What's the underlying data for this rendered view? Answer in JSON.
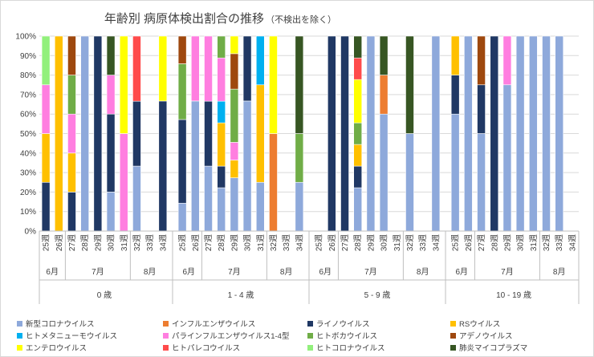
{
  "chart_data": {
    "type": "bar",
    "stacked": "percent",
    "title": "年齢別 病原体検出割合の推移",
    "subtitle": "（不検出を除く）",
    "ylim": [
      0,
      100
    ],
    "yticks": [
      "0%",
      "10%",
      "20%",
      "30%",
      "40%",
      "50%",
      "60%",
      "70%",
      "80%",
      "90%",
      "100%"
    ],
    "week_suffix": "週",
    "series": [
      {
        "name": "新型コロナウイルス",
        "color": "#8ea9db"
      },
      {
        "name": "インフルエンザウイルス",
        "color": "#ed7d31"
      },
      {
        "name": "ライノウイルス",
        "color": "#203864"
      },
      {
        "name": "RSウイルス",
        "color": "#ffc000"
      },
      {
        "name": "ヒトメタニューモウイルス",
        "color": "#00b0f0"
      },
      {
        "name": "パラインフルエンザウイルス1-4型",
        "color": "#ff7ee0"
      },
      {
        "name": "ヒトボカウイルス",
        "color": "#70ad47"
      },
      {
        "name": "アデノウイルス",
        "color": "#9e480e"
      },
      {
        "name": "エンテロウイルス",
        "color": "#ffff00"
      },
      {
        "name": "ヒトパレコウイルス",
        "color": "#ff4b4b"
      },
      {
        "name": "ヒトコロナウイルス",
        "color": "#92f07c"
      },
      {
        "name": "肺炎マイコプラズマ",
        "color": "#375623"
      }
    ],
    "groups": [
      {
        "label": "0 歳",
        "months": [
          {
            "label": "6月",
            "weeks": [
              "25",
              "26"
            ]
          },
          {
            "label": "7月",
            "weeks": [
              "27",
              "28",
              "29",
              "30",
              "31"
            ]
          },
          {
            "label": "8月",
            "weeks": [
              "32",
              "33",
              "34"
            ]
          }
        ],
        "bars": [
          {
            "week": "25",
            "segments": [
              [
                2,
                25
              ],
              [
                3,
                25
              ],
              [
                5,
                25
              ],
              [
                10,
                25
              ]
            ]
          },
          {
            "week": "26",
            "segments": [
              [
                3,
                100
              ]
            ]
          },
          {
            "week": "27",
            "segments": [
              [
                2,
                20
              ],
              [
                3,
                20
              ],
              [
                5,
                20
              ],
              [
                6,
                20
              ],
              [
                7,
                20
              ]
            ]
          },
          {
            "week": "28",
            "segments": [
              [
                0,
                100
              ]
            ]
          },
          {
            "week": "29",
            "segments": [
              [
                2,
                100
              ]
            ]
          },
          {
            "week": "30",
            "segments": [
              [
                0,
                20
              ],
              [
                2,
                40
              ],
              [
                5,
                20
              ],
              [
                11,
                20
              ]
            ]
          },
          {
            "week": "31",
            "segments": [
              [
                5,
                50
              ],
              [
                8,
                50
              ]
            ]
          },
          {
            "week": "32",
            "segments": [
              [
                0,
                33.3
              ],
              [
                2,
                33.3
              ],
              [
                9,
                33.4
              ]
            ]
          },
          {
            "week": "33",
            "segments": []
          },
          {
            "week": "34",
            "segments": [
              [
                2,
                66.7
              ],
              [
                8,
                33.3
              ]
            ]
          }
        ]
      },
      {
        "label": "1 - 4 歳",
        "months": [
          {
            "label": "6月",
            "weeks": [
              "25",
              "26"
            ]
          },
          {
            "label": "7月",
            "weeks": [
              "27",
              "28",
              "29",
              "30",
              "31"
            ]
          },
          {
            "label": "8月",
            "weeks": [
              "32",
              "33",
              "34"
            ]
          }
        ],
        "bars": [
          {
            "week": "25",
            "segments": [
              [
                0,
                14.3
              ],
              [
                2,
                42.9
              ],
              [
                6,
                28.6
              ],
              [
                7,
                14.2
              ]
            ]
          },
          {
            "week": "26",
            "segments": [
              [
                0,
                66.7
              ],
              [
                5,
                33.3
              ]
            ]
          },
          {
            "week": "27",
            "segments": [
              [
                0,
                33.3
              ],
              [
                2,
                33.3
              ],
              [
                5,
                33.4
              ]
            ]
          },
          {
            "week": "28",
            "segments": [
              [
                0,
                22.2
              ],
              [
                2,
                11.1
              ],
              [
                3,
                22.2
              ],
              [
                4,
                11.1
              ],
              [
                5,
                22.2
              ],
              [
                6,
                11.2
              ]
            ]
          },
          {
            "week": "29",
            "segments": [
              [
                0,
                27.3
              ],
              [
                3,
                9.1
              ],
              [
                5,
                9.1
              ],
              [
                6,
                27.3
              ],
              [
                7,
                18.2
              ],
              [
                8,
                9
              ]
            ]
          },
          {
            "week": "30",
            "segments": [
              [
                0,
                66.7
              ],
              [
                2,
                33.3
              ]
            ]
          },
          {
            "week": "31",
            "segments": [
              [
                0,
                25
              ],
              [
                3,
                50
              ],
              [
                4,
                25
              ]
            ]
          },
          {
            "week": "32",
            "segments": [
              [
                1,
                50
              ],
              [
                8,
                50
              ]
            ]
          },
          {
            "week": "33",
            "segments": []
          },
          {
            "week": "34",
            "segments": [
              [
                0,
                25
              ],
              [
                6,
                25
              ],
              [
                11,
                50
              ]
            ]
          }
        ]
      },
      {
        "label": "5 - 9 歳",
        "months": [
          {
            "label": "6月",
            "weeks": [
              "25",
              "26"
            ]
          },
          {
            "label": "7月",
            "weeks": [
              "27",
              "28",
              "29",
              "30",
              "31"
            ]
          },
          {
            "label": "8月",
            "weeks": [
              "32",
              "33",
              "34"
            ]
          }
        ],
        "bars": [
          {
            "week": "25",
            "segments": []
          },
          {
            "week": "26",
            "segments": [
              [
                2,
                100
              ]
            ]
          },
          {
            "week": "27",
            "segments": [
              [
                2,
                100
              ]
            ]
          },
          {
            "week": "28",
            "segments": [
              [
                0,
                22.2
              ],
              [
                2,
                11.1
              ],
              [
                3,
                11.1
              ],
              [
                6,
                11.1
              ],
              [
                8,
                22.2
              ],
              [
                9,
                11.1
              ],
              [
                11,
                11.2
              ]
            ]
          },
          {
            "week": "29",
            "segments": [
              [
                0,
                100
              ]
            ]
          },
          {
            "week": "30",
            "segments": [
              [
                0,
                60
              ],
              [
                1,
                20
              ],
              [
                11,
                20
              ]
            ]
          },
          {
            "week": "31",
            "segments": []
          },
          {
            "week": "32",
            "segments": [
              [
                0,
                50
              ],
              [
                11,
                50
              ]
            ]
          },
          {
            "week": "33",
            "segments": []
          },
          {
            "week": "34",
            "segments": [
              [
                0,
                100
              ]
            ]
          }
        ]
      },
      {
        "label": "10 - 19 歳",
        "months": [
          {
            "label": "6月",
            "weeks": [
              "25",
              "26"
            ]
          },
          {
            "label": "7月",
            "weeks": [
              "27",
              "28",
              "29",
              "30",
              "31"
            ]
          },
          {
            "label": "8月",
            "weeks": [
              "32",
              "33",
              "34"
            ]
          }
        ],
        "bars": [
          {
            "week": "25",
            "segments": [
              [
                0,
                60
              ],
              [
                2,
                20
              ],
              [
                3,
                20
              ]
            ]
          },
          {
            "week": "26",
            "segments": [
              [
                0,
                100
              ]
            ]
          },
          {
            "week": "27",
            "segments": [
              [
                0,
                50
              ],
              [
                2,
                25
              ],
              [
                7,
                25
              ]
            ]
          },
          {
            "week": "28",
            "segments": [
              [
                2,
                100
              ]
            ]
          },
          {
            "week": "29",
            "segments": [
              [
                0,
                75
              ],
              [
                5,
                25
              ]
            ]
          },
          {
            "week": "30",
            "segments": [
              [
                0,
                100
              ]
            ]
          },
          {
            "week": "31",
            "segments": [
              [
                0,
                100
              ]
            ]
          },
          {
            "week": "32",
            "segments": [
              [
                0,
                100
              ]
            ]
          },
          {
            "week": "33",
            "segments": [
              [
                0,
                100
              ]
            ]
          },
          {
            "week": "34",
            "segments": []
          }
        ]
      }
    ]
  }
}
